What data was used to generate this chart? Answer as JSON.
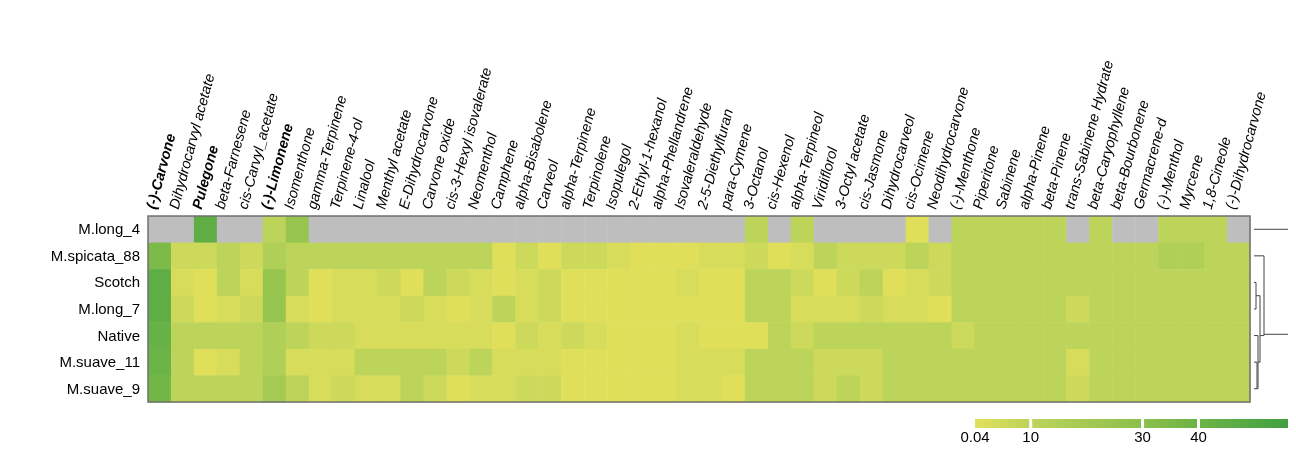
{
  "chart_data": {
    "type": "heatmap",
    "categories": [
      "(-)-Carvone",
      "Dihydrocarvyl acetate",
      "Pulegone",
      "beta-Farnesene",
      "cis-Carvyl_acetate",
      "(-)-Limonene",
      "Isomenthone",
      "gamma-Terpinene",
      "Terpinene-4-ol",
      "Linalool",
      "Menthyl acetate",
      "E-Dihydrocarvone",
      "Carvone oxide",
      "cis-3-Hexyl isovalerate",
      "Neomenthol",
      "Camphene",
      "alpha-Bisabolene",
      "Carveol",
      "alpha-Terpinene",
      "Terpinolene",
      "Isopulegol",
      "2-Ethyl-1-hexanol",
      "alpha-Phellandrene",
      "Isovaleraldehyde",
      "2-5-Diethylfuran",
      "para-Cymene",
      "3-Octanol",
      "cis-Hexenol",
      "alpha-Terpineol",
      "Viridiflorol",
      "3-Octyl acetate",
      "cis-Jasmone",
      "Dihydrocarveol",
      "cis-Ocimene",
      "Neodihydrocarvone",
      "(-)-Menthone",
      "Piperitone",
      "Sabinene",
      "alpha-Pinene",
      "beta-Pinene",
      "trans-Sabinene Hydrate",
      "beta-Caryophyllene",
      "beta-Bourbonene",
      "Germacrene-d",
      "(-)-Menthol",
      "Myrcene",
      "1,8-Cineole",
      "(-)-Dihydrocarvone"
    ],
    "y_categories": [
      "M.long_4",
      "M.spicata_88",
      "Scotch",
      "M.long_7",
      "Native",
      "M.suave_11",
      "M.suave_9"
    ],
    "cells": [
      [
        null,
        null,
        45,
        null,
        null,
        10,
        25,
        null,
        null,
        null,
        null,
        null,
        null,
        null,
        null,
        null,
        null,
        null,
        null,
        null,
        null,
        null,
        null,
        null,
        null,
        null,
        10,
        null,
        10,
        null,
        null,
        null,
        null,
        1,
        null,
        10,
        10,
        10,
        10,
        10,
        null,
        10,
        null,
        null,
        10,
        10,
        10,
        null
      ],
      [
        35,
        6,
        6,
        10,
        6,
        15,
        10,
        10,
        10,
        10,
        10,
        10,
        10,
        10,
        10,
        1,
        6,
        1,
        6,
        6,
        3,
        1,
        1,
        1,
        3,
        3,
        6,
        1,
        3,
        10,
        6,
        6,
        6,
        10,
        6,
        10,
        10,
        10,
        10,
        10,
        10,
        10,
        10,
        10,
        15,
        15,
        10,
        10
      ],
      [
        45,
        3,
        1,
        10,
        3,
        25,
        10,
        1,
        3,
        3,
        6,
        1,
        10,
        6,
        3,
        1,
        3,
        6,
        1,
        1,
        1,
        1,
        1,
        3,
        1,
        1,
        10,
        10,
        6,
        1,
        6,
        10,
        1,
        3,
        6,
        10,
        10,
        10,
        10,
        10,
        10,
        10,
        10,
        10,
        10,
        10,
        10,
        10
      ],
      [
        45,
        6,
        1,
        3,
        6,
        25,
        3,
        1,
        3,
        3,
        3,
        6,
        3,
        1,
        3,
        10,
        3,
        6,
        1,
        1,
        1,
        1,
        1,
        1,
        1,
        1,
        10,
        10,
        3,
        3,
        3,
        6,
        3,
        3,
        1,
        10,
        10,
        10,
        10,
        10,
        6,
        10,
        10,
        10,
        10,
        10,
        10,
        10
      ],
      [
        42,
        10,
        10,
        10,
        10,
        15,
        10,
        6,
        6,
        3,
        3,
        3,
        3,
        3,
        3,
        1,
        6,
        3,
        6,
        3,
        1,
        1,
        1,
        3,
        1,
        1,
        1,
        10,
        6,
        10,
        10,
        10,
        10,
        10,
        10,
        6,
        10,
        10,
        10,
        10,
        10,
        10,
        10,
        10,
        10,
        10,
        10,
        10
      ],
      [
        40,
        10,
        1,
        3,
        10,
        15,
        3,
        3,
        3,
        10,
        10,
        10,
        10,
        6,
        10,
        3,
        3,
        3,
        1,
        1,
        1,
        1,
        1,
        3,
        3,
        3,
        10,
        10,
        10,
        6,
        6,
        6,
        10,
        10,
        10,
        10,
        10,
        10,
        10,
        10,
        3,
        10,
        10,
        10,
        10,
        10,
        10,
        10
      ],
      [
        38,
        10,
        10,
        10,
        10,
        20,
        10,
        3,
        6,
        3,
        3,
        10,
        6,
        1,
        3,
        3,
        6,
        6,
        1,
        1,
        1,
        1,
        1,
        3,
        3,
        1,
        10,
        10,
        10,
        6,
        10,
        6,
        10,
        10,
        10,
        10,
        10,
        10,
        10,
        10,
        6,
        10,
        10,
        10,
        10,
        10,
        10,
        10
      ]
    ],
    "clim": [
      0.04,
      56
    ],
    "cticks": [
      0.04,
      10,
      30,
      40
    ]
  }
}
